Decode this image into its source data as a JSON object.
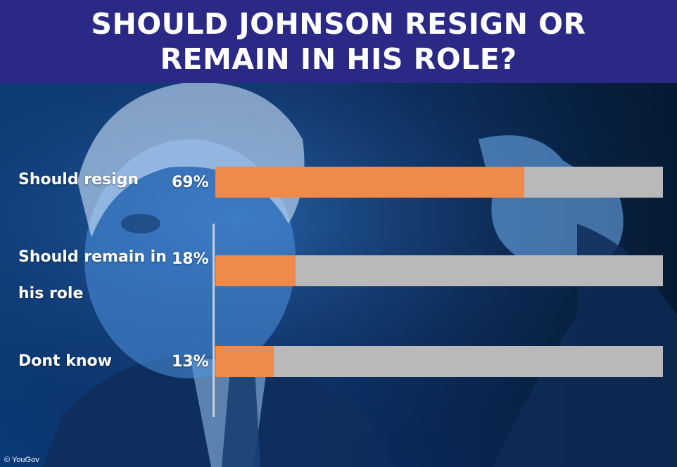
{
  "title_lines": [
    "SHOULD JOHNSON RESIGN OR",
    "REMAIN IN HIS ROLE?"
  ],
  "source": "© YouGov",
  "colors": {
    "header_bg": "#2a2a86",
    "bar_fill": "#f08a4b",
    "bar_track": "#b9b9b9",
    "text": "#ffffff"
  },
  "chart_data": {
    "type": "bar",
    "orientation": "horizontal",
    "title": "SHOULD JOHNSON RESIGN OR REMAIN IN HIS ROLE?",
    "categories": [
      "Should resign",
      "Should remain in his role",
      "Dont know"
    ],
    "category_lines": [
      [
        "Should resign"
      ],
      [
        "Should remain in",
        "his role"
      ],
      [
        "Dont know"
      ]
    ],
    "values": [
      69,
      18,
      13
    ],
    "value_labels": [
      "69%",
      "18%",
      "13%"
    ],
    "xlim": [
      0,
      100
    ],
    "grid": false,
    "legend": "none"
  }
}
